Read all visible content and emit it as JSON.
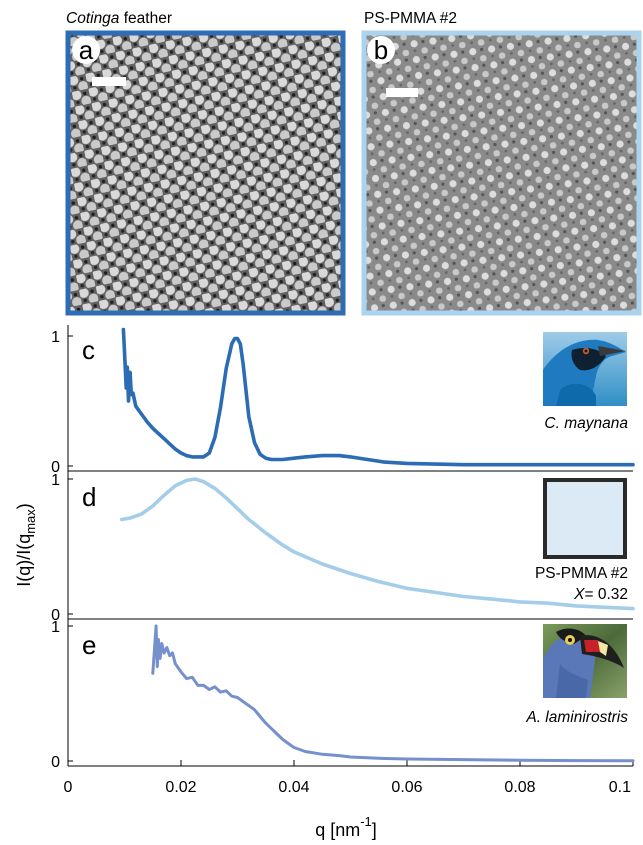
{
  "panels_top": {
    "a": {
      "letter": "a",
      "title_italic": "Cotinga",
      "title_rest": " feather",
      "frame_color": "#2e6db4"
    },
    "b": {
      "letter": "b",
      "title": "PS-PMMA #2",
      "frame_color": "#a9d3ef"
    }
  },
  "colors": {
    "c": "#2b6cb5",
    "d": "#a4cdea",
    "e": "#7590cc",
    "tile_d": "#dceaf5"
  },
  "axes": {
    "ylabel_main": "I(q)/I(q",
    "ylabel_sub": "max",
    "ylabel_end": ")",
    "xlabel_main": "q [nm",
    "xlabel_sup": "-1",
    "xlabel_end": "]",
    "xticks": [
      "0",
      "0.02",
      "0.04",
      "0.06",
      "0.08",
      "0.1"
    ]
  },
  "chart_data": [
    {
      "type": "line",
      "panel": "c",
      "species": "C. maynana",
      "yticks": [
        "0",
        "1"
      ],
      "xlim": [
        0,
        0.1
      ],
      "ylim": [
        0,
        1
      ],
      "series": [
        {
          "x": [
            0.0098,
            0.01,
            0.0103,
            0.0105,
            0.0107,
            0.011,
            0.0112,
            0.0115,
            0.012,
            0.013,
            0.014,
            0.015,
            0.016,
            0.017,
            0.018,
            0.019,
            0.02,
            0.021,
            0.022,
            0.023,
            0.024,
            0.025,
            0.026,
            0.027,
            0.028,
            0.029,
            0.0295,
            0.03,
            0.0305,
            0.031,
            0.0315,
            0.032,
            0.033,
            0.034,
            0.035,
            0.036,
            0.038,
            0.04,
            0.042,
            0.045,
            0.048,
            0.05,
            0.053,
            0.056,
            0.06,
            0.065,
            0.07,
            0.08,
            0.09,
            0.1
          ],
          "y": [
            1.05,
            0.88,
            0.6,
            0.76,
            0.5,
            0.72,
            0.55,
            0.56,
            0.46,
            0.4,
            0.34,
            0.29,
            0.25,
            0.21,
            0.17,
            0.13,
            0.1,
            0.08,
            0.07,
            0.07,
            0.07,
            0.1,
            0.22,
            0.45,
            0.75,
            0.94,
            0.98,
            0.98,
            0.94,
            0.78,
            0.58,
            0.38,
            0.18,
            0.09,
            0.06,
            0.05,
            0.05,
            0.06,
            0.07,
            0.08,
            0.08,
            0.07,
            0.05,
            0.03,
            0.02,
            0.015,
            0.01,
            0.01,
            0.01,
            0.01
          ]
        }
      ]
    },
    {
      "type": "line",
      "panel": "d",
      "label_line1": "PS-PMMA #2",
      "label_var": "X",
      "label_value": "= 0.32",
      "yticks": [
        "0",
        "1"
      ],
      "xlim": [
        0,
        0.1
      ],
      "ylim": [
        0,
        1
      ],
      "series": [
        {
          "x": [
            0.0095,
            0.011,
            0.013,
            0.015,
            0.017,
            0.019,
            0.021,
            0.0225,
            0.024,
            0.026,
            0.028,
            0.03,
            0.032,
            0.035,
            0.038,
            0.04,
            0.045,
            0.05,
            0.055,
            0.06,
            0.065,
            0.07,
            0.075,
            0.08,
            0.085,
            0.09,
            0.095,
            0.1
          ],
          "y": [
            0.7,
            0.71,
            0.74,
            0.8,
            0.88,
            0.95,
            0.99,
            1.0,
            0.98,
            0.93,
            0.86,
            0.78,
            0.7,
            0.6,
            0.51,
            0.46,
            0.37,
            0.3,
            0.24,
            0.19,
            0.16,
            0.13,
            0.11,
            0.09,
            0.08,
            0.06,
            0.05,
            0.04
          ]
        }
      ]
    },
    {
      "type": "line",
      "panel": "e",
      "species": "A. laminirostris",
      "yticks": [
        "0",
        "1"
      ],
      "xlim": [
        0,
        0.1
      ],
      "ylim": [
        0,
        1
      ],
      "series": [
        {
          "x": [
            0.015,
            0.0153,
            0.0156,
            0.0158,
            0.016,
            0.0163,
            0.0166,
            0.017,
            0.0175,
            0.018,
            0.0185,
            0.019,
            0.02,
            0.021,
            0.022,
            0.023,
            0.024,
            0.025,
            0.026,
            0.027,
            0.028,
            0.029,
            0.03,
            0.031,
            0.032,
            0.033,
            0.034,
            0.035,
            0.036,
            0.037,
            0.038,
            0.039,
            0.04,
            0.042,
            0.045,
            0.048,
            0.05,
            0.055,
            0.06,
            0.07,
            0.08,
            0.09,
            0.1
          ],
          "y": [
            0.65,
            0.82,
            1.0,
            0.7,
            0.9,
            0.76,
            0.87,
            0.8,
            0.84,
            0.78,
            0.8,
            0.72,
            0.66,
            0.61,
            0.62,
            0.56,
            0.56,
            0.53,
            0.55,
            0.51,
            0.52,
            0.48,
            0.47,
            0.44,
            0.41,
            0.38,
            0.33,
            0.28,
            0.24,
            0.2,
            0.16,
            0.13,
            0.1,
            0.07,
            0.05,
            0.04,
            0.03,
            0.02,
            0.015,
            0.01,
            0.005,
            0.003,
            0.002
          ]
        }
      ]
    }
  ]
}
